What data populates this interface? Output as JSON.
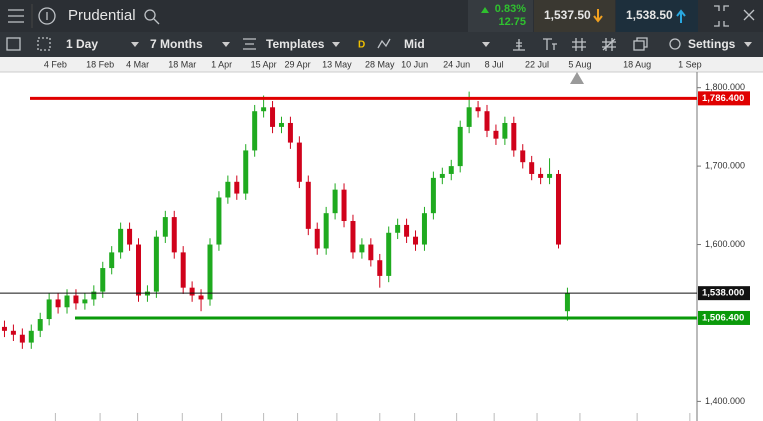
{
  "header": {
    "instrument": "Prudential",
    "change_pct": "0.83%",
    "change": "12.75",
    "sell": "1,537.50",
    "buy": "1,538.50"
  },
  "toolbar": {
    "interval": "1 Day",
    "range": "7 Months",
    "templates": "Templates",
    "price_type_badge": "D",
    "price_type": "Mid",
    "settings": "Settings"
  },
  "chart_data": {
    "type": "candlestick",
    "up_color": "#1faa1f",
    "down_color": "#d0021b",
    "open": [
      1495,
      1490,
      1485,
      1475,
      1490,
      1505,
      1530,
      1520,
      1535,
      1525,
      1530,
      1540,
      1570,
      1590,
      1620,
      1600,
      1535,
      1540,
      1610,
      1635,
      1590,
      1545,
      1535,
      1530,
      1600,
      1660,
      1680,
      1665,
      1720,
      1770,
      1775,
      1750,
      1755,
      1730,
      1680,
      1620,
      1595,
      1640,
      1670,
      1630,
      1590,
      1600,
      1580,
      1560,
      1615,
      1625,
      1610,
      1600,
      1640,
      1685,
      1690,
      1700,
      1750,
      1775,
      1770,
      1745,
      1735,
      1755,
      1720,
      1705,
      1690,
      1685,
      1690,
      1515
    ],
    "high": [
      1503,
      1498,
      1493,
      1498,
      1513,
      1538,
      1538,
      1543,
      1543,
      1538,
      1548,
      1578,
      1598,
      1628,
      1628,
      1608,
      1548,
      1618,
      1643,
      1643,
      1598,
      1553,
      1543,
      1608,
      1668,
      1688,
      1688,
      1728,
      1778,
      1790,
      1783,
      1763,
      1763,
      1738,
      1688,
      1628,
      1648,
      1678,
      1678,
      1638,
      1608,
      1608,
      1588,
      1623,
      1633,
      1633,
      1618,
      1648,
      1693,
      1698,
      1708,
      1758,
      1795,
      1783,
      1778,
      1753,
      1763,
      1763,
      1728,
      1713,
      1698,
      1710,
      1695,
      1545
    ],
    "low": [
      1482,
      1477,
      1467,
      1467,
      1482,
      1497,
      1512,
      1512,
      1517,
      1517,
      1522,
      1532,
      1562,
      1582,
      1592,
      1527,
      1527,
      1532,
      1602,
      1582,
      1537,
      1527,
      1515,
      1522,
      1592,
      1652,
      1657,
      1657,
      1712,
      1762,
      1742,
      1742,
      1722,
      1672,
      1612,
      1587,
      1587,
      1632,
      1622,
      1582,
      1582,
      1572,
      1545,
      1552,
      1607,
      1602,
      1592,
      1592,
      1632,
      1677,
      1682,
      1692,
      1742,
      1762,
      1737,
      1727,
      1727,
      1712,
      1697,
      1682,
      1677,
      1677,
      1595,
      1503
    ],
    "close": [
      1490,
      1485,
      1475,
      1490,
      1505,
      1530,
      1520,
      1535,
      1525,
      1530,
      1540,
      1570,
      1590,
      1620,
      1600,
      1535,
      1540,
      1610,
      1635,
      1590,
      1545,
      1535,
      1530,
      1600,
      1660,
      1680,
      1665,
      1720,
      1770,
      1775,
      1750,
      1755,
      1730,
      1680,
      1620,
      1595,
      1640,
      1670,
      1630,
      1590,
      1600,
      1580,
      1560,
      1615,
      1625,
      1610,
      1600,
      1640,
      1685,
      1690,
      1700,
      1750,
      1775,
      1770,
      1745,
      1735,
      1755,
      1720,
      1705,
      1690,
      1685,
      1690,
      1600,
      1538
    ],
    "xlim": [
      0,
      78
    ],
    "xticks": [
      {
        "value": 6.2,
        "label": "4 Feb"
      },
      {
        "value": 11.2,
        "label": "18 Feb"
      },
      {
        "value": 15.4,
        "label": "4 Mar"
      },
      {
        "value": 20.4,
        "label": "18 Mar"
      },
      {
        "value": 24.8,
        "label": "1 Apr"
      },
      {
        "value": 29.5,
        "label": "15 Apr"
      },
      {
        "value": 33.3,
        "label": "29 Apr"
      },
      {
        "value": 37.7,
        "label": "13 May"
      },
      {
        "value": 42.5,
        "label": "28 May"
      },
      {
        "value": 46.4,
        "label": "10 Jun"
      },
      {
        "value": 51.1,
        "label": "24 Jun"
      },
      {
        "value": 55.3,
        "label": "8 Jul"
      },
      {
        "value": 60.1,
        "label": "22 Jul"
      },
      {
        "value": 64.9,
        "label": "5 Aug"
      },
      {
        "value": 71.3,
        "label": "18 Aug"
      },
      {
        "value": 77.2,
        "label": "1 Sep"
      }
    ],
    "ylim": [
      1375,
      1820
    ],
    "yticks": [
      {
        "value": 1400,
        "label": "1,400.000"
      },
      {
        "value": 1600,
        "label": "1,600.000"
      },
      {
        "value": 1700,
        "label": "1,700.000"
      },
      {
        "value": 1800,
        "label": "1,800.000"
      }
    ],
    "levels": [
      {
        "value": 1786.4,
        "label": "1,786.400",
        "color": "#e00000"
      },
      {
        "value": 1538,
        "label": "1,538.000",
        "color": "#111111"
      },
      {
        "value": 1506.4,
        "label": "1,506.400",
        "color": "#0a9a0a"
      }
    ]
  }
}
